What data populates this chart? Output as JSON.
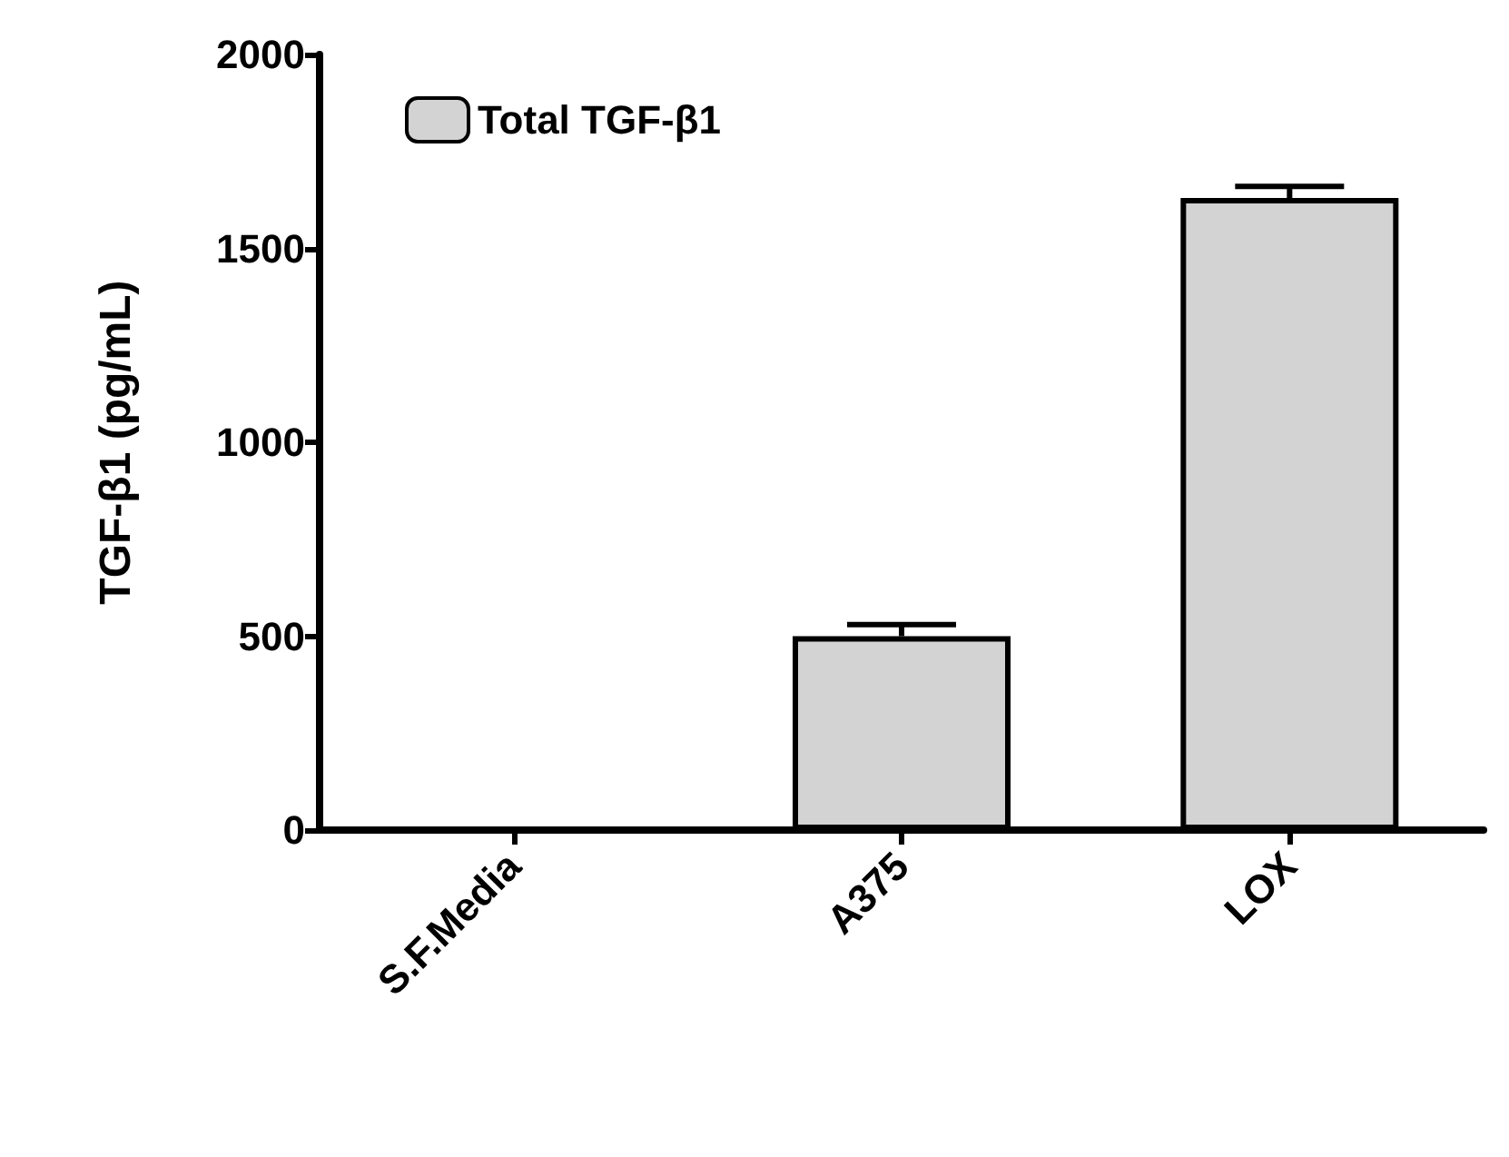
{
  "chart_data": {
    "type": "bar",
    "ylabel": "TGF-β1 (pg/mL)",
    "categories": [
      "S.F.Media",
      "A375",
      "LOX"
    ],
    "series": [
      {
        "name": "Total TGF-β1",
        "color": "#d3d3d3",
        "values": [
          0,
          500,
          1630
        ],
        "errors": [
          null,
          [
            500,
            530
          ],
          [
            1630,
            1660
          ]
        ]
      }
    ],
    "ylim": [
      0,
      2000
    ],
    "yticks": [
      0,
      500,
      1000,
      1500,
      2000
    ],
    "grid": false,
    "legend": "top left"
  }
}
